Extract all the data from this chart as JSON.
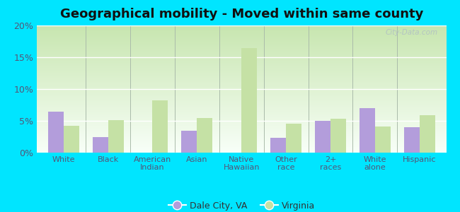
{
  "title": "Geographical mobility - Moved within same county",
  "categories": [
    "White",
    "Black",
    "American\nIndian",
    "Asian",
    "Native\nHawaiian",
    "Other\nrace",
    "2+\nraces",
    "White\nalone",
    "Hispanic"
  ],
  "dale_city": [
    6.5,
    2.5,
    0.0,
    3.5,
    0.0,
    2.3,
    5.0,
    7.0,
    4.0
  ],
  "virginia": [
    4.2,
    5.1,
    8.2,
    5.4,
    16.5,
    4.6,
    5.3,
    4.1,
    5.9
  ],
  "dale_city_color": "#b39ddb",
  "virginia_color": "#c5e1a5",
  "background_outer": "#00e5ff",
  "ylim": [
    0,
    20
  ],
  "yticks": [
    0,
    5,
    10,
    15,
    20
  ],
  "ytick_labels": [
    "0%",
    "5%",
    "10%",
    "15%",
    "20%"
  ],
  "legend_dale_city": "Dale City, VA",
  "legend_virginia": "Virginia",
  "bar_width": 0.35,
  "tick_color": "#555577",
  "title_color": "#111111"
}
